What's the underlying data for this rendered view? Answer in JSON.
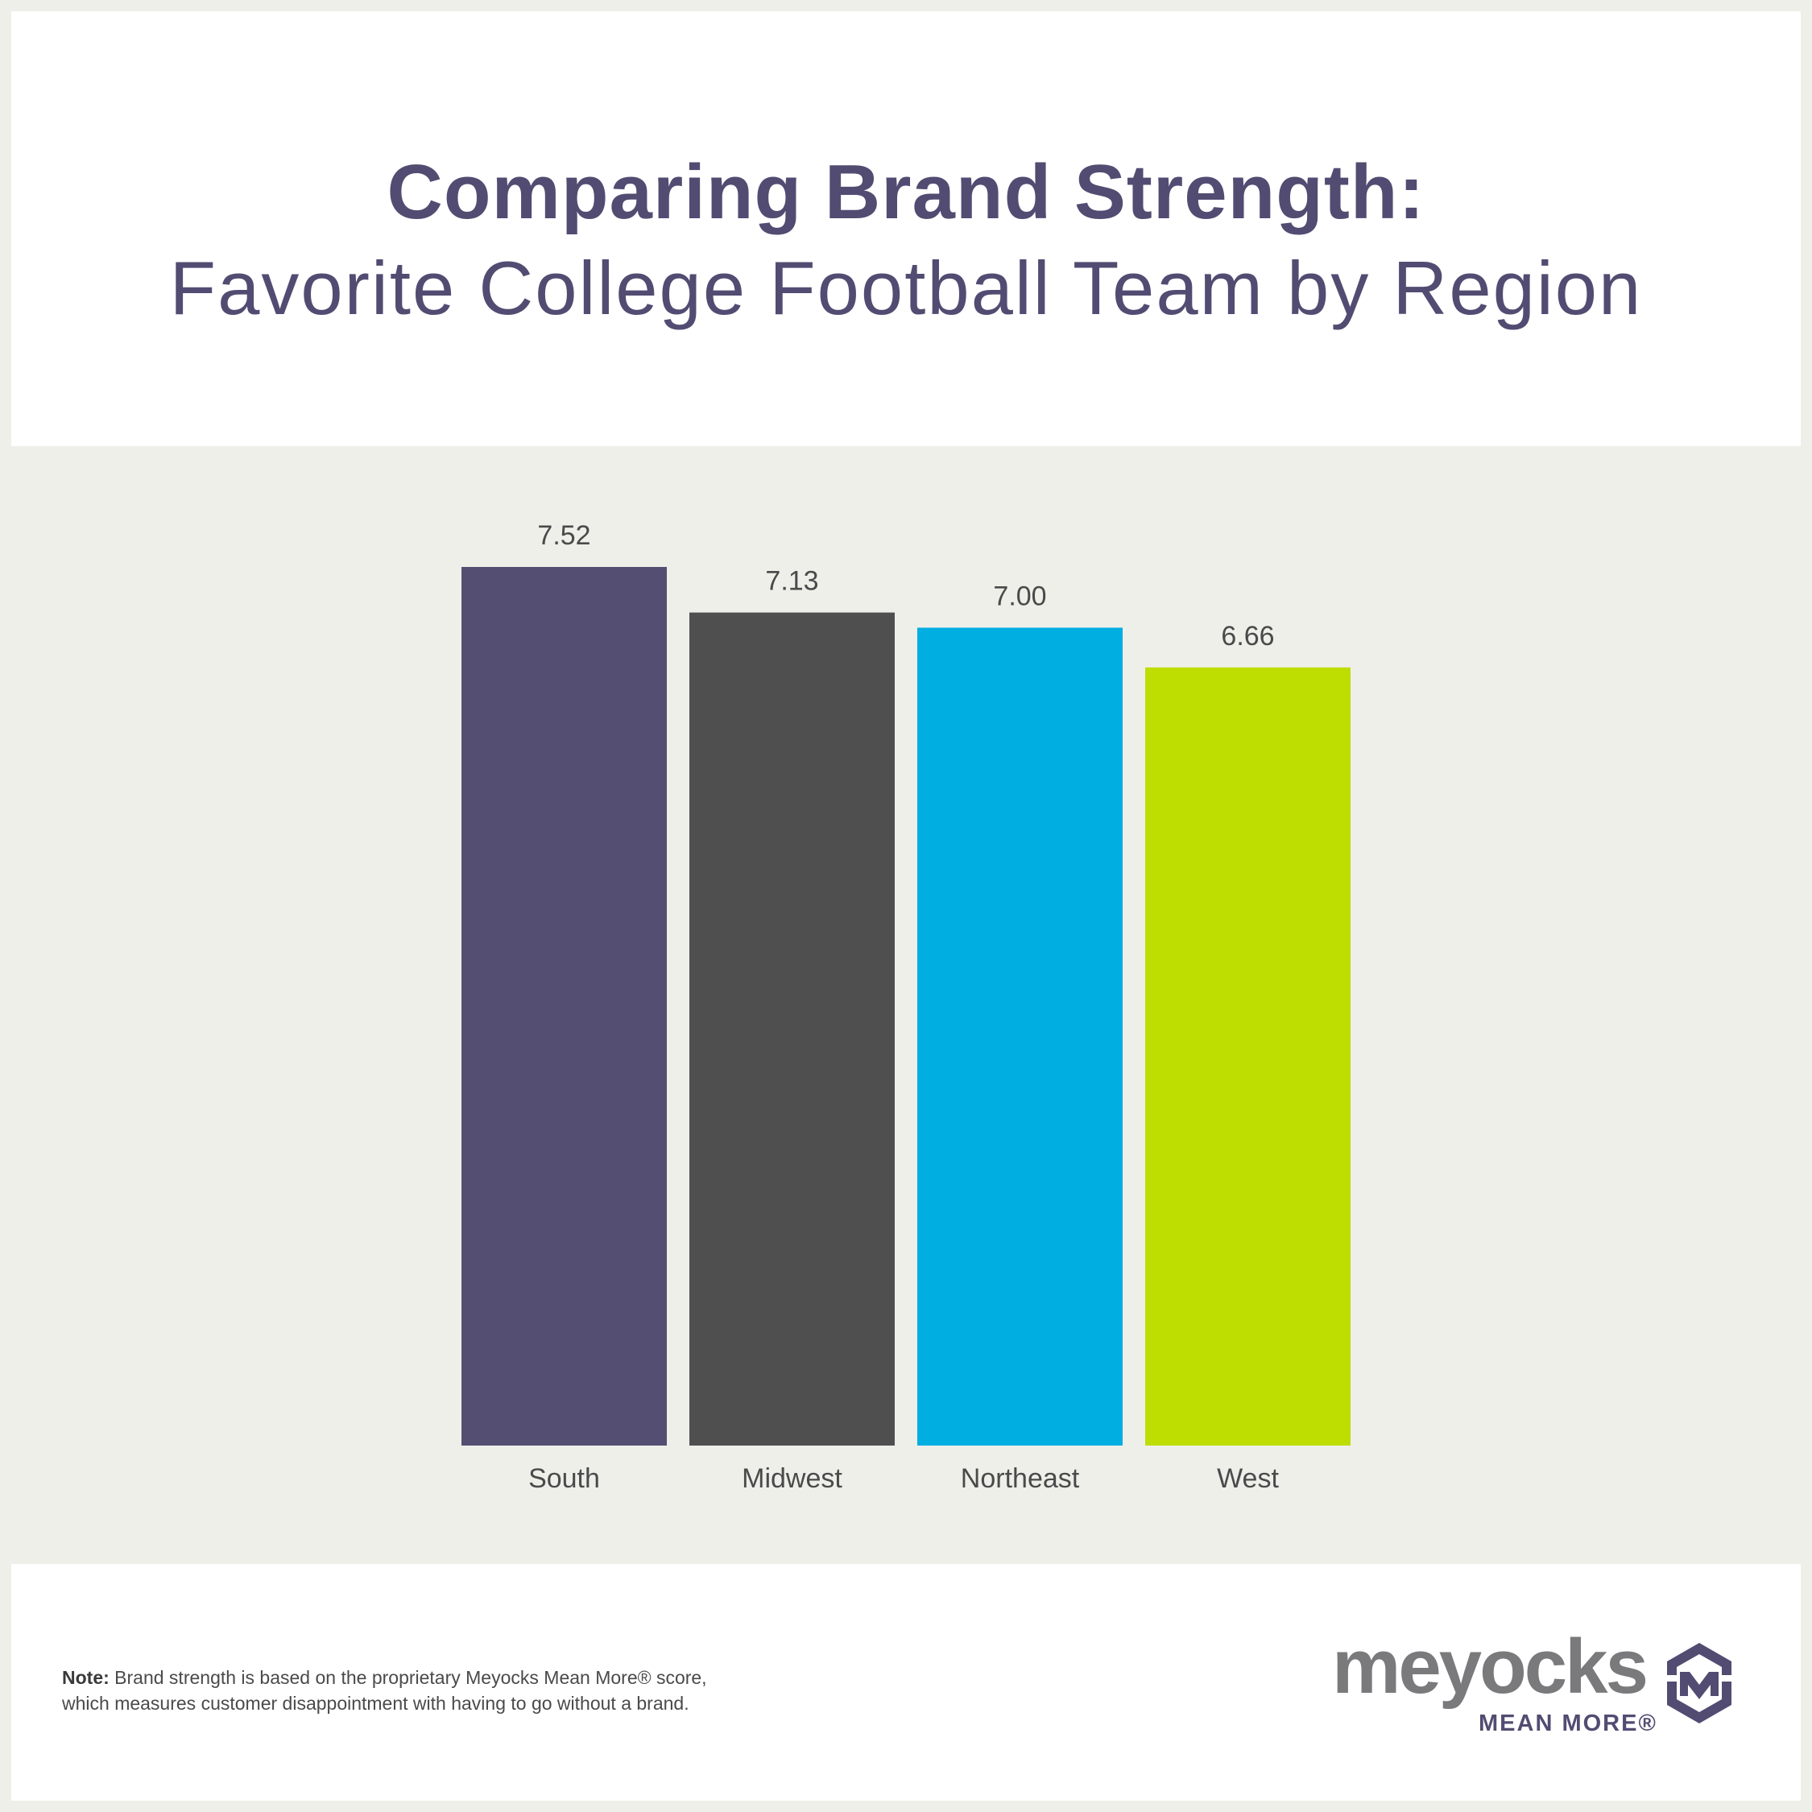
{
  "title": {
    "line1": "Comparing Brand Strength:",
    "line2": "Favorite College Football Team by Region"
  },
  "chart_data": {
    "type": "bar",
    "categories": [
      "South",
      "Midwest",
      "Northeast",
      "West"
    ],
    "values": [
      7.52,
      7.13,
      7.0,
      6.66
    ],
    "value_labels": [
      "7.52",
      "7.13",
      "7.00",
      "6.66"
    ],
    "colors": [
      "#544f72",
      "#4f4f4f",
      "#00aee2",
      "#bedd00"
    ],
    "ylim": [
      0,
      7.52
    ],
    "grid": false,
    "legend": "none"
  },
  "footer": {
    "note_label": "Note:",
    "note_line1": "Brand strength is based on the proprietary Meyocks Mean More® score,",
    "note_line2": "which measures customer disappointment with having to go without a brand.",
    "logo_word": "meyocks",
    "logo_tag": "MEAN MORE®",
    "logo_icon": "meyocks-m-hexagon-icon"
  }
}
